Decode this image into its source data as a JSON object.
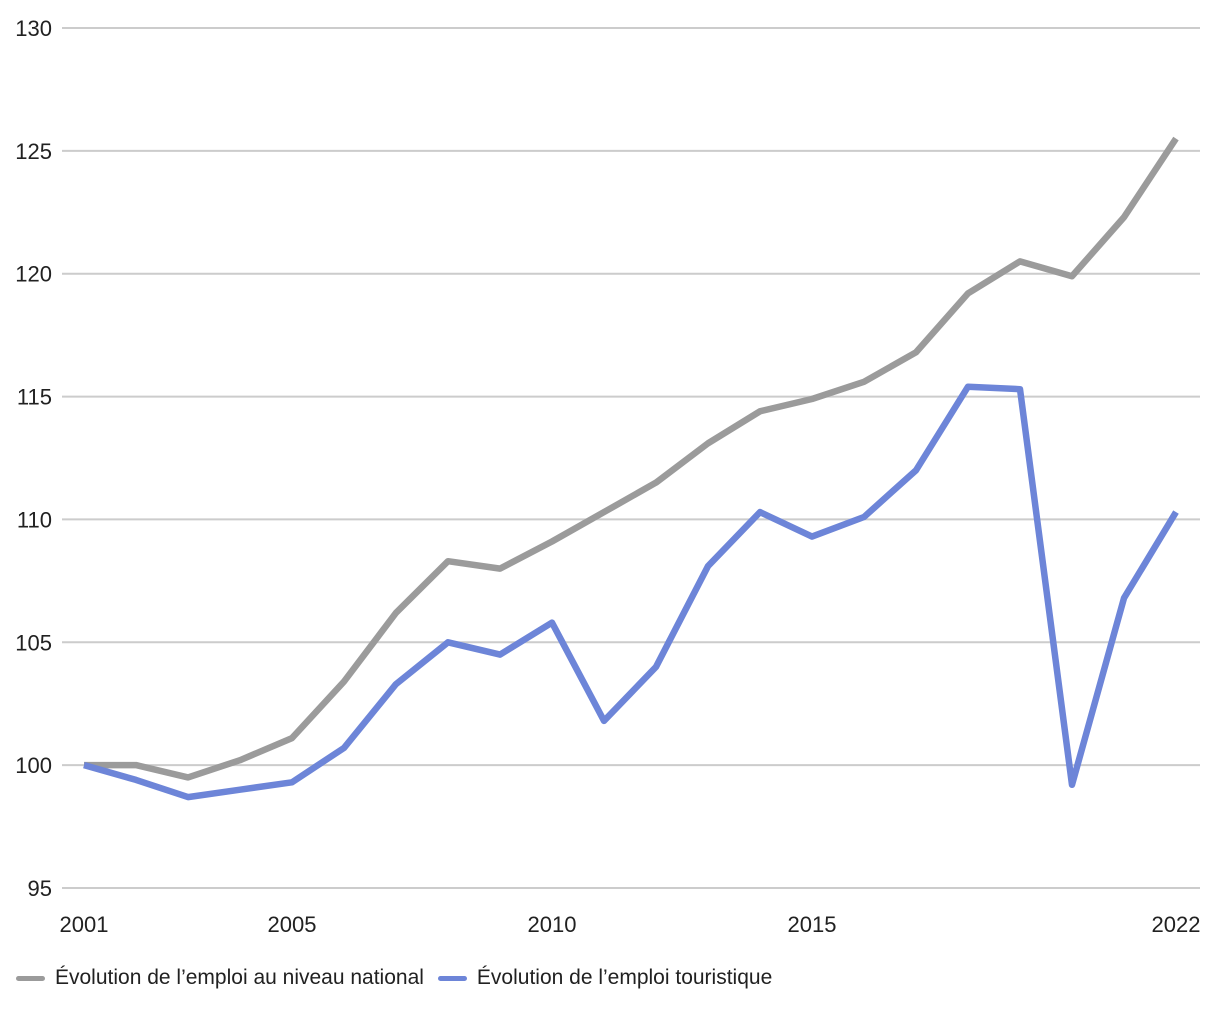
{
  "chart_data": {
    "type": "line",
    "x": [
      2001,
      2002,
      2003,
      2004,
      2005,
      2006,
      2007,
      2008,
      2009,
      2010,
      2011,
      2012,
      2013,
      2014,
      2015,
      2016,
      2017,
      2018,
      2019,
      2020,
      2021,
      2022
    ],
    "series": [
      {
        "name": "Évolution de l’emploi au niveau national",
        "color": "#9b9b9b",
        "values": [
          100.0,
          100.0,
          99.5,
          100.2,
          101.1,
          103.4,
          106.2,
          108.3,
          108.0,
          109.1,
          110.3,
          111.5,
          113.1,
          114.4,
          114.9,
          115.6,
          116.8,
          119.2,
          120.5,
          119.9,
          122.3,
          125.5
        ]
      },
      {
        "name": "Évolution de l’emploi touristique",
        "color": "#6d85d8",
        "values": [
          100.0,
          99.4,
          98.7,
          99.0,
          99.3,
          100.7,
          103.3,
          105.0,
          104.5,
          105.8,
          101.8,
          104.0,
          108.1,
          110.3,
          109.3,
          110.1,
          112.0,
          115.4,
          115.3,
          99.2,
          106.8,
          110.3
        ]
      }
    ],
    "ylim": [
      95,
      130
    ],
    "yticks": [
      95,
      100,
      105,
      110,
      115,
      120,
      125,
      130
    ],
    "xtick_labels": [
      2001,
      2005,
      2010,
      2015,
      2022
    ],
    "grid": "horizontal",
    "gridline_color": "#cccccc",
    "axis_label_color": "#212121",
    "legend_position": "bottom-left"
  }
}
